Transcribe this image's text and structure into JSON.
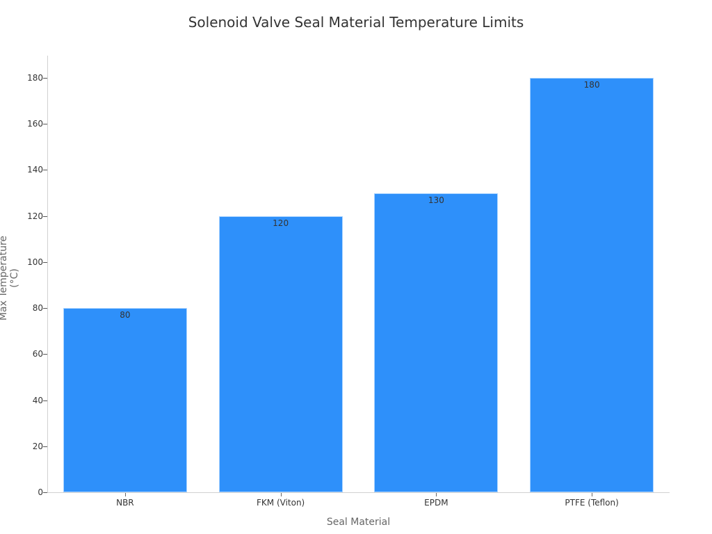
{
  "chart_data": {
    "type": "bar",
    "title": "Solenoid Valve Seal Material Temperature Limits",
    "xlabel": "Seal Material",
    "ylabel": "Max Temperature (°C)",
    "categories": [
      "NBR",
      "FKM (Viton)",
      "EPDM",
      "PTFE (Teflon)"
    ],
    "values": [
      80,
      120,
      130,
      180
    ],
    "data_labels": [
      "80",
      "120",
      "130",
      "180"
    ],
    "ylim": [
      0,
      190
    ],
    "yticks": [
      "0",
      "20",
      "40",
      "60",
      "80",
      "100",
      "120",
      "140",
      "160",
      "180"
    ],
    "grid": false,
    "legend": null,
    "bar_color": "#2e90fa"
  }
}
